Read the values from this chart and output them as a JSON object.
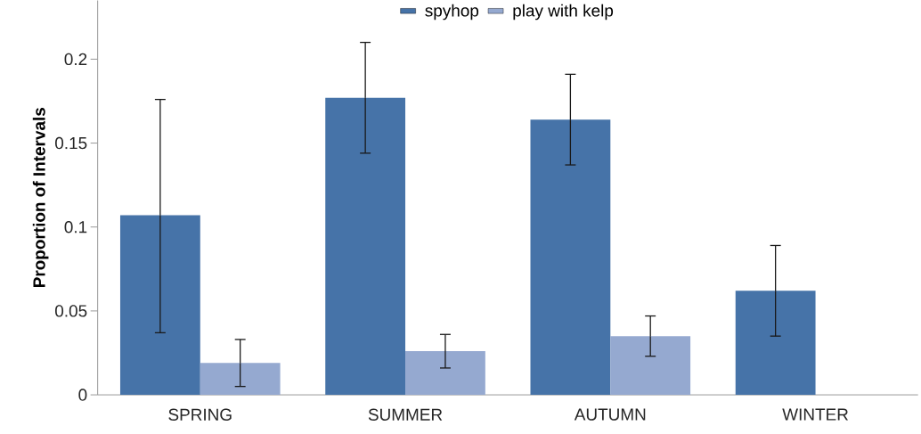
{
  "chart_data": {
    "type": "bar",
    "ylabel": "Proportion of Intervals",
    "categories": [
      "SPRING",
      "SUMMER",
      "AUTUMN",
      "WINTER"
    ],
    "series": [
      {
        "name": "spyhop",
        "color": "#4673a8",
        "values": [
          0.107,
          0.177,
          0.164,
          0.062
        ],
        "errors": [
          [
            0.037,
            0.176
          ],
          [
            0.144,
            0.21
          ],
          [
            0.137,
            0.191
          ],
          [
            0.035,
            0.089
          ]
        ]
      },
      {
        "name": "play with kelp",
        "color": "#95a9d0",
        "values": [
          0.019,
          0.026,
          0.035,
          0
        ],
        "errors": [
          [
            0.005,
            0.033
          ],
          [
            0.016,
            0.036
          ],
          [
            0.023,
            0.047
          ],
          null
        ]
      }
    ],
    "ylim": [
      0,
      0.235
    ],
    "yticks": [
      0,
      0.05,
      0.1,
      0.15,
      0.2
    ],
    "legend": "top",
    "grid": false
  }
}
